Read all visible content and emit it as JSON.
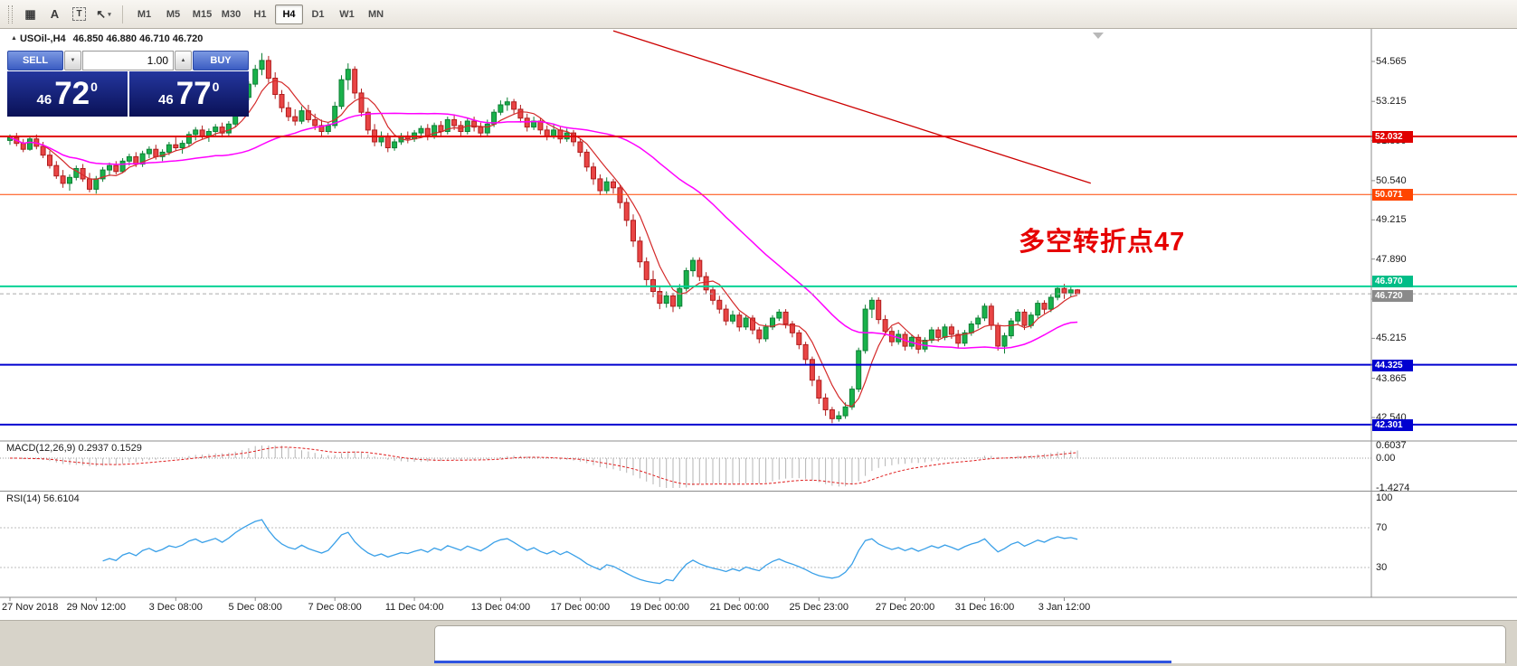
{
  "toolbar": {
    "icons": [
      {
        "name": "new-chart-icon",
        "glyph": "▦"
      },
      {
        "name": "letter-a-icon",
        "glyph": "A"
      },
      {
        "name": "text-label-icon",
        "glyph": "T",
        "boxed": true
      },
      {
        "name": "cursor-tool-icon",
        "glyph": "↖",
        "caret": "▾"
      }
    ],
    "timeframes": [
      "M1",
      "M5",
      "M15",
      "M30",
      "H1",
      "H4",
      "D1",
      "W1",
      "MN"
    ],
    "active_timeframe": "H4"
  },
  "chart": {
    "expand_glyph": "▲",
    "symbol": "USOil-,H4",
    "ohlc_text": "46.850 46.880 46.710 46.720",
    "annotation": {
      "text": "多空转折点47",
      "color": "#e60000"
    },
    "trade_panel": {
      "sell_label": "SELL",
      "buy_label": "BUY",
      "volume": "1.00",
      "spin_down_glyph": "▼",
      "spin_up_glyph": "▲",
      "bid_small": "46",
      "bid_big": "72",
      "bid_sup": "0",
      "ask_small": "46",
      "ask_big": "77",
      "ask_sup": "0"
    },
    "hlines": [
      {
        "price": 52.032,
        "label": "52.032",
        "color": "#e00000",
        "box": "#e00000",
        "width": 2,
        "label_offset": -6
      },
      {
        "price": 50.071,
        "label": "50.071",
        "color": "#ff4500",
        "box": "#ff4500",
        "width": 1,
        "label_offset": -6
      },
      {
        "price": 46.97,
        "label": "46.970",
        "color": "#00d295",
        "box": "#00bd87",
        "width": 2,
        "label_offset": -12
      },
      {
        "price": 46.72,
        "label": "46.720",
        "color": "#aaaaaa",
        "box": "#8a8a8a",
        "width": 1,
        "dashed": true,
        "label_offset": -4
      },
      {
        "price": 44.325,
        "label": "44.325",
        "color": "#0000d0",
        "box": "#0000d0",
        "width": 2,
        "label_offset": -6
      },
      {
        "price": 42.301,
        "label": "42.301",
        "color": "#0000d0",
        "box": "#0000d0",
        "width": 2,
        "label_offset": -6
      }
    ],
    "y_ticks": [
      54.565,
      53.215,
      51.89,
      50.54,
      49.215,
      47.89,
      46.54,
      45.215,
      43.865,
      42.54
    ],
    "x_ticks": [
      {
        "label": "27 Nov 2018",
        "i": 0
      },
      {
        "label": "29 Nov 12:00",
        "i": 13
      },
      {
        "label": "3 Dec 08:00",
        "i": 25
      },
      {
        "label": "5 Dec 08:00",
        "i": 37
      },
      {
        "label": "7 Dec 08:00",
        "i": 49
      },
      {
        "label": "11 Dec 04:00",
        "i": 61
      },
      {
        "label": "13 Dec 04:00",
        "i": 74
      },
      {
        "label": "17 Dec 00:00",
        "i": 86
      },
      {
        "label": "19 Dec 00:00",
        "i": 98
      },
      {
        "label": "21 Dec 00:00",
        "i": 110
      },
      {
        "label": "25 Dec 23:00",
        "i": 122
      },
      {
        "label": "27 Dec 20:00",
        "i": 135
      },
      {
        "label": "31 Dec 16:00",
        "i": 147
      },
      {
        "label": "3 Jan 12:00",
        "i": 159
      }
    ],
    "trend_line": {
      "i1": 91,
      "p1": 55.6,
      "i2": 163,
      "p2": 50.45,
      "color": "#cc0000"
    }
  },
  "chart_data": {
    "type": "candlestick",
    "symbol": "USOil-",
    "timeframe": "H4",
    "up_color": "#19b24b",
    "up_border": "#0e7f35",
    "down_color": "#e94545",
    "down_border": "#b01d1d",
    "ma_fast": {
      "period": 6,
      "color": "#d42a2a"
    },
    "ma_slow": {
      "period": 32,
      "color": "#ff00ff"
    },
    "ohlc": [
      [
        51.9,
        52.1,
        51.75,
        52.0
      ],
      [
        52.0,
        52.15,
        51.7,
        51.8
      ],
      [
        51.8,
        51.95,
        51.5,
        51.6
      ],
      [
        51.6,
        52.05,
        51.55,
        51.95
      ],
      [
        51.95,
        52.1,
        51.6,
        51.7
      ],
      [
        51.7,
        51.85,
        51.3,
        51.4
      ],
      [
        51.4,
        51.55,
        50.95,
        51.05
      ],
      [
        51.05,
        51.2,
        50.6,
        50.7
      ],
      [
        50.7,
        50.9,
        50.3,
        50.45
      ],
      [
        50.45,
        50.75,
        50.2,
        50.65
      ],
      [
        50.65,
        51.05,
        50.55,
        50.95
      ],
      [
        50.95,
        51.1,
        50.5,
        50.6
      ],
      [
        50.6,
        50.8,
        50.15,
        50.25
      ],
      [
        50.25,
        50.7,
        50.1,
        50.6
      ],
      [
        50.6,
        51.0,
        50.5,
        50.9
      ],
      [
        50.9,
        51.15,
        50.7,
        51.05
      ],
      [
        51.05,
        51.2,
        50.75,
        50.85
      ],
      [
        50.85,
        51.3,
        50.8,
        51.2
      ],
      [
        51.2,
        51.45,
        51.05,
        51.35
      ],
      [
        51.35,
        51.5,
        51.0,
        51.1
      ],
      [
        51.1,
        51.55,
        51.0,
        51.45
      ],
      [
        51.45,
        51.7,
        51.3,
        51.6
      ],
      [
        51.6,
        51.75,
        51.25,
        51.35
      ],
      [
        51.35,
        51.6,
        51.2,
        51.5
      ],
      [
        51.5,
        51.85,
        51.4,
        51.75
      ],
      [
        51.75,
        52.0,
        51.55,
        51.65
      ],
      [
        51.65,
        51.9,
        51.45,
        51.8
      ],
      [
        51.8,
        52.2,
        51.7,
        52.1
      ],
      [
        52.1,
        52.35,
        51.9,
        52.25
      ],
      [
        52.25,
        52.4,
        51.95,
        52.05
      ],
      [
        52.05,
        52.3,
        51.85,
        52.2
      ],
      [
        52.2,
        52.45,
        52.05,
        52.35
      ],
      [
        52.35,
        52.5,
        52.0,
        52.15
      ],
      [
        52.15,
        52.55,
        52.05,
        52.45
      ],
      [
        52.45,
        53.0,
        52.35,
        52.9
      ],
      [
        52.9,
        53.45,
        52.8,
        53.35
      ],
      [
        53.35,
        53.9,
        53.25,
        53.8
      ],
      [
        53.8,
        54.45,
        53.7,
        54.3
      ],
      [
        54.3,
        54.85,
        54.1,
        54.6
      ],
      [
        54.6,
        54.75,
        53.85,
        54.0
      ],
      [
        54.0,
        54.2,
        53.3,
        53.45
      ],
      [
        53.45,
        53.6,
        52.85,
        53.0
      ],
      [
        53.0,
        53.2,
        52.55,
        52.7
      ],
      [
        52.7,
        52.95,
        52.4,
        52.55
      ],
      [
        52.55,
        53.05,
        52.45,
        52.9
      ],
      [
        52.9,
        53.1,
        52.5,
        52.6
      ],
      [
        52.6,
        52.8,
        52.25,
        52.4
      ],
      [
        52.4,
        52.6,
        52.05,
        52.2
      ],
      [
        52.2,
        52.5,
        52.1,
        52.4
      ],
      [
        52.4,
        53.2,
        52.3,
        53.05
      ],
      [
        53.05,
        54.1,
        52.95,
        53.95
      ],
      [
        53.95,
        54.5,
        53.6,
        54.3
      ],
      [
        54.3,
        54.4,
        53.3,
        53.5
      ],
      [
        53.5,
        53.65,
        52.7,
        52.85
      ],
      [
        52.85,
        53.0,
        52.1,
        52.25
      ],
      [
        52.25,
        52.45,
        51.7,
        51.85
      ],
      [
        51.85,
        52.2,
        51.7,
        52.05
      ],
      [
        52.05,
        52.15,
        51.5,
        51.65
      ],
      [
        51.65,
        51.95,
        51.55,
        51.85
      ],
      [
        51.85,
        52.15,
        51.75,
        52.05
      ],
      [
        52.05,
        52.2,
        51.8,
        51.95
      ],
      [
        51.95,
        52.25,
        51.85,
        52.15
      ],
      [
        52.15,
        52.4,
        52.0,
        52.3
      ],
      [
        52.3,
        52.45,
        51.9,
        52.05
      ],
      [
        52.05,
        52.5,
        51.95,
        52.4
      ],
      [
        52.4,
        52.55,
        52.05,
        52.2
      ],
      [
        52.2,
        52.7,
        52.1,
        52.6
      ],
      [
        52.6,
        52.75,
        52.25,
        52.4
      ],
      [
        52.4,
        52.55,
        52.05,
        52.2
      ],
      [
        52.2,
        52.65,
        52.1,
        52.55
      ],
      [
        52.55,
        52.7,
        52.2,
        52.35
      ],
      [
        52.35,
        52.5,
        52.0,
        52.15
      ],
      [
        52.15,
        52.6,
        52.05,
        52.45
      ],
      [
        52.45,
        52.95,
        52.35,
        52.85
      ],
      [
        52.85,
        53.25,
        52.75,
        53.1
      ],
      [
        53.1,
        53.35,
        52.9,
        53.2
      ],
      [
        53.2,
        53.3,
        52.8,
        52.95
      ],
      [
        52.95,
        53.1,
        52.5,
        52.65
      ],
      [
        52.65,
        52.8,
        52.2,
        52.35
      ],
      [
        52.35,
        52.7,
        52.25,
        52.55
      ],
      [
        52.55,
        52.65,
        52.1,
        52.25
      ],
      [
        52.25,
        52.4,
        51.9,
        52.05
      ],
      [
        52.05,
        52.45,
        51.95,
        52.25
      ],
      [
        52.25,
        52.35,
        51.8,
        51.95
      ],
      [
        51.95,
        52.3,
        51.85,
        52.15
      ],
      [
        52.15,
        52.25,
        51.7,
        51.85
      ],
      [
        51.85,
        51.95,
        51.35,
        51.5
      ],
      [
        51.5,
        51.6,
        50.85,
        51.0
      ],
      [
        51.0,
        51.15,
        50.4,
        50.6
      ],
      [
        50.6,
        50.75,
        50.05,
        50.2
      ],
      [
        50.2,
        50.65,
        50.1,
        50.5
      ],
      [
        50.5,
        50.6,
        50.1,
        50.3
      ],
      [
        50.3,
        50.4,
        49.6,
        49.8
      ],
      [
        49.8,
        49.95,
        49.0,
        49.2
      ],
      [
        49.2,
        49.4,
        48.3,
        48.5
      ],
      [
        48.5,
        48.65,
        47.6,
        47.8
      ],
      [
        47.8,
        47.95,
        47.0,
        47.2
      ],
      [
        47.2,
        47.5,
        46.6,
        46.8
      ],
      [
        46.8,
        46.95,
        46.2,
        46.4
      ],
      [
        46.4,
        46.8,
        46.25,
        46.65
      ],
      [
        46.65,
        46.75,
        46.1,
        46.3
      ],
      [
        46.3,
        47.05,
        46.2,
        46.9
      ],
      [
        46.9,
        47.6,
        46.8,
        47.5
      ],
      [
        47.5,
        47.95,
        47.3,
        47.85
      ],
      [
        47.85,
        47.95,
        47.15,
        47.3
      ],
      [
        47.3,
        47.45,
        46.7,
        46.85
      ],
      [
        46.85,
        47.0,
        46.35,
        46.5
      ],
      [
        46.5,
        46.65,
        46.05,
        46.2
      ],
      [
        46.2,
        46.35,
        45.65,
        45.8
      ],
      [
        45.8,
        46.15,
        45.7,
        46.0
      ],
      [
        46.0,
        46.1,
        45.45,
        45.6
      ],
      [
        45.6,
        46.0,
        45.5,
        45.9
      ],
      [
        45.9,
        46.0,
        45.35,
        45.5
      ],
      [
        45.5,
        45.6,
        45.05,
        45.2
      ],
      [
        45.2,
        45.7,
        45.1,
        45.6
      ],
      [
        45.6,
        46.0,
        45.5,
        45.9
      ],
      [
        45.9,
        46.2,
        45.8,
        46.1
      ],
      [
        46.1,
        46.2,
        45.55,
        45.7
      ],
      [
        45.7,
        45.8,
        45.25,
        45.4
      ],
      [
        45.4,
        45.5,
        44.85,
        45.0
      ],
      [
        45.0,
        45.1,
        44.3,
        44.5
      ],
      [
        44.5,
        44.6,
        43.6,
        43.8
      ],
      [
        43.8,
        43.95,
        43.0,
        43.2
      ],
      [
        43.2,
        43.35,
        42.6,
        42.8
      ],
      [
        42.8,
        42.9,
        42.35,
        42.5
      ],
      [
        42.5,
        42.75,
        42.4,
        42.6
      ],
      [
        42.6,
        43.05,
        42.5,
        42.9
      ],
      [
        42.9,
        43.6,
        42.8,
        43.5
      ],
      [
        43.5,
        44.9,
        43.4,
        44.8
      ],
      [
        44.8,
        46.35,
        44.7,
        46.2
      ],
      [
        46.2,
        46.6,
        45.9,
        46.5
      ],
      [
        46.5,
        46.6,
        45.7,
        45.85
      ],
      [
        45.85,
        46.0,
        45.3,
        45.45
      ],
      [
        45.45,
        45.6,
        44.95,
        45.1
      ],
      [
        45.1,
        45.5,
        45.0,
        45.35
      ],
      [
        45.35,
        45.45,
        44.8,
        44.95
      ],
      [
        44.95,
        45.35,
        44.85,
        45.25
      ],
      [
        45.25,
        45.35,
        44.7,
        44.85
      ],
      [
        44.85,
        45.25,
        44.75,
        45.15
      ],
      [
        45.15,
        45.6,
        45.05,
        45.5
      ],
      [
        45.5,
        45.6,
        45.1,
        45.25
      ],
      [
        45.25,
        45.7,
        45.15,
        45.6
      ],
      [
        45.6,
        45.7,
        45.2,
        45.35
      ],
      [
        45.35,
        45.5,
        44.9,
        45.05
      ],
      [
        45.05,
        45.5,
        44.95,
        45.4
      ],
      [
        45.4,
        45.8,
        45.3,
        45.7
      ],
      [
        45.7,
        46.0,
        45.55,
        45.9
      ],
      [
        45.9,
        46.4,
        45.8,
        46.3
      ],
      [
        46.3,
        46.4,
        45.5,
        45.65
      ],
      [
        45.65,
        45.75,
        44.8,
        44.95
      ],
      [
        44.95,
        45.4,
        44.7,
        45.3
      ],
      [
        45.3,
        45.9,
        45.2,
        45.8
      ],
      [
        45.8,
        46.2,
        45.7,
        46.1
      ],
      [
        46.1,
        46.2,
        45.5,
        45.65
      ],
      [
        45.65,
        46.1,
        45.55,
        46.0
      ],
      [
        46.0,
        46.5,
        45.9,
        46.4
      ],
      [
        46.4,
        46.5,
        46.05,
        46.2
      ],
      [
        46.2,
        46.7,
        46.1,
        46.6
      ],
      [
        46.6,
        47.0,
        46.5,
        46.9
      ],
      [
        46.9,
        47.05,
        46.55,
        46.75
      ],
      [
        46.75,
        46.95,
        46.6,
        46.85
      ],
      [
        46.85,
        46.88,
        46.71,
        46.72
      ]
    ]
  },
  "macd": {
    "label": "MACD(12,26,9) 0.2937 0.1529",
    "fast": 12,
    "slow": 26,
    "signal": 9,
    "max": 0.6037,
    "min": -1.4274,
    "axis": [
      {
        "text": "0.6037",
        "value": 0.6037
      },
      {
        "text": "0.00",
        "value": 0
      },
      {
        "text": "-1.4274",
        "value": -1.4274
      }
    ],
    "hist_color": "#b4b4b4",
    "signal_color": "#e02020"
  },
  "rsi": {
    "label": "RSI(14) 56.6104",
    "period": 14,
    "levels": [
      70,
      30
    ],
    "axis": [
      {
        "text": "100",
        "value": 100
      },
      {
        "text": "70",
        "value": 70
      },
      {
        "text": "30",
        "value": 30
      }
    ],
    "color": "#3aa0e8"
  }
}
